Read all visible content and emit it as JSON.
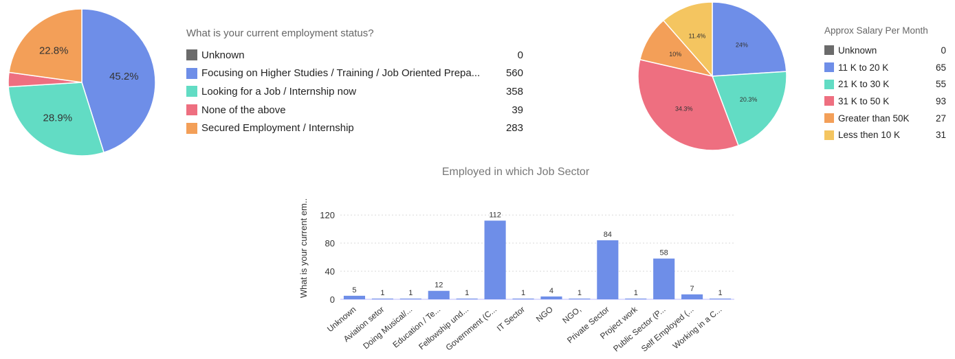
{
  "chart_data": [
    {
      "type": "pie",
      "title": "What is your current employment status?",
      "slices": [
        {
          "label": "Unknown",
          "value": 0,
          "pct_label": "",
          "color": "#6b6b6b"
        },
        {
          "label": "Focusing on Higher Studies / Training / Job Oriented Prepa...",
          "value": 560,
          "pct_label": "45.2%",
          "color": "#6e8ee8"
        },
        {
          "label": "Looking for a Job / Internship now",
          "value": 358,
          "pct_label": "28.9%",
          "color": "#62dcc4"
        },
        {
          "label": "None of the above",
          "value": 39,
          "pct_label": "",
          "color": "#ee6f80"
        },
        {
          "label": "Secured Employment / Internship",
          "value": 283,
          "pct_label": "22.8%",
          "color": "#f39f58"
        }
      ],
      "legend": "right"
    },
    {
      "type": "pie",
      "title": "Approx Salary Per Month",
      "slices": [
        {
          "label": "Unknown",
          "value": 0,
          "pct_label": "",
          "color": "#6b6b6b"
        },
        {
          "label": "11 K to 20 K",
          "value": 65,
          "pct_label": "24%",
          "color": "#6e8ee8"
        },
        {
          "label": "21 K to 30 K",
          "value": 55,
          "pct_label": "20.3%",
          "color": "#62dcc4"
        },
        {
          "label": "31 K to 50 K",
          "value": 93,
          "pct_label": "34.3%",
          "color": "#ee6f80"
        },
        {
          "label": "Greater than 50K",
          "value": 27,
          "pct_label": "10%",
          "color": "#f39f58"
        },
        {
          "label": "Less then 10 K",
          "value": 31,
          "pct_label": "11.4%",
          "color": "#f4c560"
        }
      ],
      "legend": "right"
    },
    {
      "type": "bar",
      "title": "Employed in which Job Sector",
      "xlabel": "",
      "ylabel": "What is your current em..",
      "categories": [
        "Unknown",
        "Aviation setor",
        "Doing Musical/...",
        "Education / Te...",
        "Fellowship und...",
        "Government (C...",
        "IT Sector",
        "NGO",
        "NGO,",
        "Private Sector",
        "Project work",
        "Public Sector (P...",
        "Self Employed (...",
        "Working in a C..."
      ],
      "values": [
        5,
        1,
        1,
        12,
        1,
        112,
        1,
        4,
        1,
        84,
        1,
        58,
        7,
        1
      ],
      "yticks": [
        0,
        40,
        80,
        120
      ],
      "ylim": [
        0,
        130
      ],
      "grid": true,
      "color": "#6e8ee8"
    }
  ]
}
